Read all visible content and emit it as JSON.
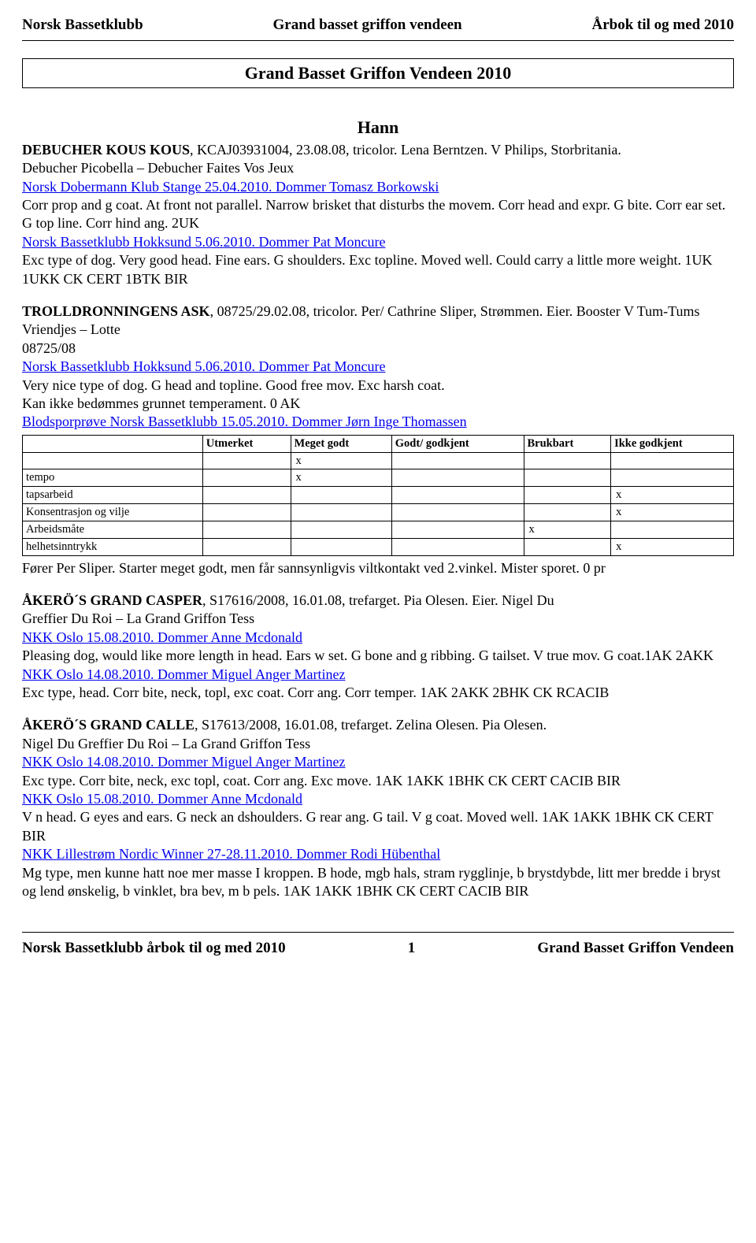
{
  "header": {
    "left": "Norsk Bassetklubb",
    "center": "Grand basset griffon vendeen",
    "right": "Årbok til og med 2010"
  },
  "title": "Grand Basset Griffon Vendeen  2010",
  "hann": "Hann",
  "entry1": {
    "name": "DEBUCHER KOUS KOUS",
    "line1_rest": ", KCAJ03931004, 23.08.08, tricolor. Lena Berntzen. V Philips, Storbritania.",
    "line2": "Debucher Picobella – Debucher Faites Vos Jeux",
    "link1": "Norsk Dobermann Klub Stange 25.04.2010.  Dommer Tomasz Borkowski",
    "desc1": "Corr prop and g coat. At front not parallel. Narrow brisket that disturbs the movem. Corr head and expr. G bite. Corr ear set. G top line. Corr hind ang. 2UK",
    "link2": "Norsk Bassetklubb Hokksund 5.06.2010. Dommer Pat Moncure",
    "desc2": "Exc type of dog. Very good head. Fine ears. G shoulders. Exc topline. Moved well. Could carry a little more weight. 1UK 1UKK CK CERT 1BTK BIR"
  },
  "entry2": {
    "name": "TROLLDRONNINGENS ASK",
    "line1_rest": ", 08725/29.02.08, tricolor. Per/ Cathrine Sliper, Strømmen. Eier. Booster V Tum-Tums Vriendjes – Lotte",
    "regno": "08725/08",
    "link1": "Norsk Bassetklubb Hokksund 5.06.2010. Dommer Pat Moncure",
    "desc1": "Very nice type of dog. G head and topline. Good free mov. Exc harsh coat.",
    "desc1b": "Kan ikke bedømmes grunnet temperament. 0 AK",
    "link2": "Blodsporprøve Norsk Bassetklubb 15.05.2010. Dommer Jørn Inge Thomassen",
    "table": {
      "headers": [
        "",
        "Utmerket",
        "Meget godt",
        "Godt/ godkjent",
        "Brukbart",
        "Ikke godkjent"
      ],
      "rows": [
        {
          "label": "",
          "mark_col": 2
        },
        {
          "label": "tempo",
          "mark_col": 2
        },
        {
          "label": "tapsarbeid",
          "mark_col": 5
        },
        {
          "label": "Konsentrasjon og vilje",
          "mark_col": 5
        },
        {
          "label": "Arbeidsmåte",
          "mark_col": 4
        },
        {
          "label": "helhetsinntrykk",
          "mark_col": 5
        }
      ]
    },
    "after_table": "Fører Per Sliper. Starter meget godt, men får sannsynligvis viltkontakt ved 2.vinkel. Mister sporet. 0 pr"
  },
  "entry3": {
    "name": "ÅKERÖ´S GRAND CASPER",
    "line1_rest": ", S17616/2008, 16.01.08, trefarget. Pia Olesen. Eier. Nigel Du",
    "line2": "Greffier Du Roi – La Grand Griffon Tess",
    "link1": "NKK Oslo 15.08.2010.  Dommer Anne Mcdonald",
    "desc1": "Pleasing dog, would like more length in head. Ears w set. G bone and g ribbing.  G tailset. V true mov. G coat.1AK 2AKK",
    "link2": "NKK Oslo 14.08.2010. Dommer Miguel Anger Martinez",
    "desc2": "Exc type, head. Corr bite, neck, topl, exc coat. Corr ang. Corr temper. 1AK 2AKK 2BHK CK RCACIB"
  },
  "entry4": {
    "name": "ÅKERÖ´S GRAND CALLE",
    "line1_rest": ", S17613/2008, 16.01.08, trefarget. Zelina Olesen. Pia Olesen.",
    "line2": "Nigel Du Greffier Du Roi – La Grand Griffon Tess",
    "link1": "NKK Oslo 14.08.2010. Dommer Miguel Anger Martinez",
    "desc1": "Exc type. Corr bite, neck, exc topl, coat. Corr ang. Exc move. 1AK 1AKK 1BHK CK CERT CACIB BIR",
    "link2": "NKK Oslo 15.08.2010.  Dommer Anne Mcdonald",
    "desc2": "V n head. G eyes and ears. G neck an dshoulders. G rear ang. G tail. V g coat. Moved well. 1AK 1AKK 1BHK CK CERT BIR",
    "link3": "NKK Lillestrøm Nordic Winner 27-28.11.2010. Dommer Rodi Hübenthal",
    "desc3": "Mg type, men kunne hatt noe mer masse I kroppen. B hode, mgb hals, stram rygglinje, b brystdybde, litt mer bredde i bryst og lend ønskelig, b vinklet, bra bev, m b pels.  1AK 1AKK 1BHK CK CERT CACIB BIR"
  },
  "footer": {
    "left": "Norsk Bassetklubb årbok til og med 2010",
    "page": "1",
    "right": "Grand Basset Griffon Vendeen"
  }
}
